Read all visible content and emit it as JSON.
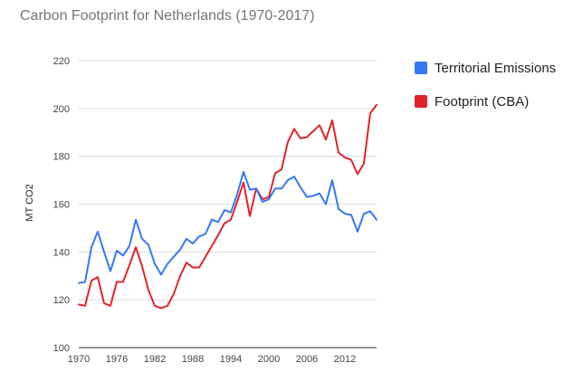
{
  "chart_data": {
    "type": "line",
    "title": "Carbon Footprint for Netherlands (1970-2017)",
    "xlabel": "",
    "ylabel": "MT CO2",
    "xlim": [
      1970,
      2017
    ],
    "ylim": [
      100,
      220
    ],
    "yticks": [
      100,
      120,
      140,
      160,
      180,
      200,
      220
    ],
    "xticks": [
      1970,
      1976,
      1982,
      1988,
      1994,
      2000,
      2006,
      2012
    ],
    "grid": true,
    "legend_position": "right",
    "x": [
      1970,
      1971,
      1972,
      1973,
      1974,
      1975,
      1976,
      1977,
      1978,
      1979,
      1980,
      1981,
      1982,
      1983,
      1984,
      1985,
      1986,
      1987,
      1988,
      1989,
      1990,
      1991,
      1992,
      1993,
      1994,
      1995,
      1996,
      1997,
      1998,
      1999,
      2000,
      2001,
      2002,
      2003,
      2004,
      2005,
      2006,
      2007,
      2008,
      2009,
      2010,
      2011,
      2012,
      2013,
      2014,
      2015,
      2016,
      2017
    ],
    "series": [
      {
        "name": "Territorial Emissions",
        "color": "#3478f6",
        "values": [
          127,
          127.5,
          142,
          148.5,
          140,
          132,
          140.5,
          138.5,
          142.5,
          153.5,
          145.5,
          143,
          135,
          130.5,
          135,
          138,
          141,
          145.5,
          143.5,
          146.5,
          147.5,
          153.5,
          152.5,
          157.5,
          156.5,
          164,
          173.5,
          166,
          166.5,
          161,
          162,
          166.5,
          166.5,
          170,
          171.5,
          167,
          163,
          163.5,
          164.5,
          160,
          170,
          158,
          156,
          155.5,
          148.5,
          156,
          157,
          153.5
        ]
      },
      {
        "name": "Footprint (CBA)",
        "color": "#e2232b",
        "values": [
          118,
          117.5,
          128,
          129.5,
          118.5,
          117.5,
          127.5,
          127.5,
          134.5,
          142,
          134,
          124,
          117.5,
          116.5,
          117.5,
          122.5,
          130,
          135.5,
          133.5,
          133.5,
          138,
          142.5,
          147,
          152,
          153.5,
          161,
          169,
          155,
          166.5,
          162,
          163,
          173,
          174.5,
          186,
          191.5,
          187.5,
          188,
          190.5,
          193,
          187,
          195,
          181.5,
          179.5,
          178.5,
          172.5,
          177,
          198,
          201.5
        ]
      }
    ]
  }
}
